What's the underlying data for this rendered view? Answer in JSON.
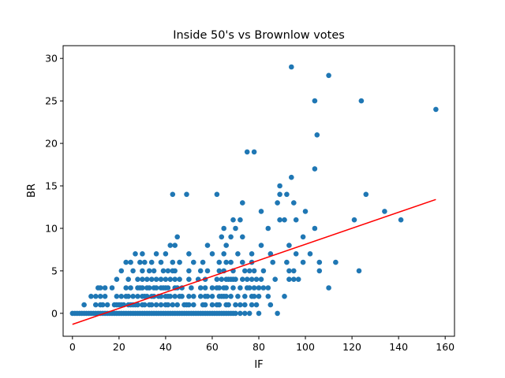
{
  "chart_data": {
    "type": "scatter",
    "title": "Inside 50's vs Brownlow votes",
    "xlabel": "IF",
    "ylabel": "BR",
    "xlim": [
      -4,
      164
    ],
    "ylim": [
      -2.7,
      31.5
    ],
    "xticks": [
      0,
      20,
      40,
      60,
      80,
      100,
      120,
      140,
      160
    ],
    "yticks": [
      0,
      5,
      10,
      15,
      20,
      25,
      30
    ],
    "grid": false,
    "legend": "none",
    "point_color": "#1f77b4",
    "line_color": "#ff0000",
    "regression_line": {
      "x": [
        0,
        156
      ],
      "y": [
        -1.3,
        13.4
      ]
    },
    "points": [
      [
        0,
        0
      ],
      [
        1,
        0
      ],
      [
        2,
        0
      ],
      [
        3,
        0
      ],
      [
        4,
        0
      ],
      [
        5,
        0
      ],
      [
        6,
        0
      ],
      [
        7,
        0
      ],
      [
        8,
        0
      ],
      [
        9,
        0
      ],
      [
        10,
        0
      ],
      [
        11,
        0
      ],
      [
        12,
        0
      ],
      [
        13,
        0
      ],
      [
        14,
        0
      ],
      [
        15,
        0
      ],
      [
        16,
        0
      ],
      [
        17,
        0
      ],
      [
        18,
        0
      ],
      [
        19,
        0
      ],
      [
        20,
        0
      ],
      [
        21,
        0
      ],
      [
        22,
        0
      ],
      [
        23,
        0
      ],
      [
        24,
        0
      ],
      [
        25,
        0
      ],
      [
        26,
        0
      ],
      [
        27,
        0
      ],
      [
        28,
        0
      ],
      [
        29,
        0
      ],
      [
        30,
        0
      ],
      [
        31,
        0
      ],
      [
        32,
        0
      ],
      [
        33,
        0
      ],
      [
        34,
        0
      ],
      [
        35,
        0
      ],
      [
        36,
        0
      ],
      [
        37,
        0
      ],
      [
        38,
        0
      ],
      [
        39,
        0
      ],
      [
        40,
        0
      ],
      [
        41,
        0
      ],
      [
        42,
        0
      ],
      [
        43,
        0
      ],
      [
        44,
        0
      ],
      [
        45,
        0
      ],
      [
        46,
        0
      ],
      [
        47,
        0
      ],
      [
        48,
        0
      ],
      [
        49,
        0
      ],
      [
        50,
        0
      ],
      [
        51,
        0
      ],
      [
        52,
        0
      ],
      [
        53,
        0
      ],
      [
        54,
        0
      ],
      [
        55,
        0
      ],
      [
        56,
        0
      ],
      [
        57,
        0
      ],
      [
        58,
        0
      ],
      [
        59,
        0
      ],
      [
        60,
        0
      ],
      [
        61,
        0
      ],
      [
        62,
        0
      ],
      [
        63,
        0
      ],
      [
        64,
        0
      ],
      [
        65,
        0
      ],
      [
        66,
        0
      ],
      [
        67,
        0
      ],
      [
        68,
        0
      ],
      [
        69,
        0
      ],
      [
        70,
        0
      ],
      [
        72,
        0
      ],
      [
        74,
        0
      ],
      [
        76,
        0
      ],
      [
        80,
        0
      ],
      [
        88,
        0
      ],
      [
        5,
        1
      ],
      [
        10,
        1
      ],
      [
        12,
        1
      ],
      [
        13,
        1
      ],
      [
        15,
        1
      ],
      [
        18,
        1
      ],
      [
        19,
        1
      ],
      [
        20,
        1
      ],
      [
        21,
        1
      ],
      [
        22,
        1
      ],
      [
        24,
        1
      ],
      [
        25,
        1
      ],
      [
        26,
        1
      ],
      [
        27,
        1
      ],
      [
        28,
        1
      ],
      [
        30,
        1
      ],
      [
        31,
        1
      ],
      [
        33,
        1
      ],
      [
        34,
        1
      ],
      [
        36,
        1
      ],
      [
        38,
        1
      ],
      [
        40,
        1
      ],
      [
        41,
        1
      ],
      [
        43,
        1
      ],
      [
        45,
        1
      ],
      [
        48,
        1
      ],
      [
        49,
        1
      ],
      [
        50,
        1
      ],
      [
        52,
        1
      ],
      [
        56,
        1
      ],
      [
        57,
        1
      ],
      [
        60,
        1
      ],
      [
        62,
        1
      ],
      [
        63,
        1
      ],
      [
        66,
        1
      ],
      [
        67,
        1
      ],
      [
        70,
        1
      ],
      [
        72,
        1
      ],
      [
        74,
        1
      ],
      [
        77,
        1
      ],
      [
        79,
        1
      ],
      [
        85,
        1
      ],
      [
        8,
        2
      ],
      [
        10,
        2
      ],
      [
        12,
        2
      ],
      [
        14,
        2
      ],
      [
        19,
        2
      ],
      [
        21,
        2
      ],
      [
        23,
        2
      ],
      [
        24,
        2
      ],
      [
        26,
        2
      ],
      [
        28,
        2
      ],
      [
        30,
        2
      ],
      [
        31,
        2
      ],
      [
        32,
        2
      ],
      [
        34,
        2
      ],
      [
        35,
        2
      ],
      [
        37,
        2
      ],
      [
        38,
        2
      ],
      [
        40,
        2
      ],
      [
        41,
        2
      ],
      [
        42,
        2
      ],
      [
        44,
        2
      ],
      [
        46,
        2
      ],
      [
        47,
        2
      ],
      [
        50,
        2
      ],
      [
        52,
        2
      ],
      [
        55,
        2
      ],
      [
        57,
        2
      ],
      [
        58,
        2
      ],
      [
        60,
        2
      ],
      [
        63,
        2
      ],
      [
        64,
        2
      ],
      [
        65,
        2
      ],
      [
        66,
        2
      ],
      [
        68,
        2
      ],
      [
        71,
        2
      ],
      [
        74,
        2
      ],
      [
        77,
        2
      ],
      [
        78,
        2
      ],
      [
        80,
        2
      ],
      [
        84,
        2
      ],
      [
        91,
        2
      ],
      [
        11,
        3
      ],
      [
        12,
        3
      ],
      [
        14,
        3
      ],
      [
        17,
        3
      ],
      [
        23,
        3
      ],
      [
        25,
        3
      ],
      [
        28,
        3
      ],
      [
        29,
        3
      ],
      [
        30,
        3
      ],
      [
        32,
        3
      ],
      [
        33,
        3
      ],
      [
        35,
        3
      ],
      [
        36,
        3
      ],
      [
        38,
        3
      ],
      [
        39,
        3
      ],
      [
        40,
        3
      ],
      [
        41,
        3
      ],
      [
        44,
        3
      ],
      [
        45,
        3
      ],
      [
        47,
        3
      ],
      [
        51,
        3
      ],
      [
        55,
        3
      ],
      [
        57,
        3
      ],
      [
        60,
        3
      ],
      [
        62,
        3
      ],
      [
        63,
        3
      ],
      [
        65,
        3
      ],
      [
        66,
        3
      ],
      [
        69,
        3
      ],
      [
        72,
        3
      ],
      [
        75,
        3
      ],
      [
        76,
        3
      ],
      [
        78,
        3
      ],
      [
        80,
        3
      ],
      [
        82,
        3
      ],
      [
        84,
        3
      ],
      [
        110,
        3
      ],
      [
        19,
        4
      ],
      [
        24,
        4
      ],
      [
        28,
        4
      ],
      [
        30,
        4
      ],
      [
        32,
        4
      ],
      [
        34,
        4
      ],
      [
        36,
        4
      ],
      [
        38,
        4
      ],
      [
        40,
        4
      ],
      [
        42,
        4
      ],
      [
        44,
        4
      ],
      [
        46,
        4
      ],
      [
        50,
        4
      ],
      [
        54,
        4
      ],
      [
        57,
        4
      ],
      [
        62,
        4
      ],
      [
        64,
        4
      ],
      [
        66,
        4
      ],
      [
        67,
        4
      ],
      [
        68,
        4
      ],
      [
        69,
        4
      ],
      [
        70,
        4
      ],
      [
        73,
        4
      ],
      [
        75,
        4
      ],
      [
        77,
        4
      ],
      [
        79,
        4
      ],
      [
        81,
        4
      ],
      [
        87,
        4
      ],
      [
        93,
        4
      ],
      [
        95,
        4
      ],
      [
        97,
        4
      ],
      [
        21,
        5
      ],
      [
        26,
        5
      ],
      [
        30,
        5
      ],
      [
        33,
        5
      ],
      [
        35,
        5
      ],
      [
        39,
        5
      ],
      [
        41,
        5
      ],
      [
        43,
        5
      ],
      [
        44,
        5
      ],
      [
        50,
        5
      ],
      [
        55,
        5
      ],
      [
        58,
        5
      ],
      [
        63,
        5
      ],
      [
        65,
        5
      ],
      [
        69,
        5
      ],
      [
        74,
        5
      ],
      [
        76,
        5
      ],
      [
        78,
        5
      ],
      [
        82,
        5
      ],
      [
        93,
        5
      ],
      [
        95,
        5
      ],
      [
        106,
        5
      ],
      [
        123,
        5
      ],
      [
        23,
        6
      ],
      [
        25,
        6
      ],
      [
        29,
        6
      ],
      [
        31,
        6
      ],
      [
        34,
        6
      ],
      [
        38,
        6
      ],
      [
        43,
        6
      ],
      [
        46,
        6
      ],
      [
        52,
        6
      ],
      [
        56,
        6
      ],
      [
        63,
        6
      ],
      [
        66,
        6
      ],
      [
        68,
        6
      ],
      [
        73,
        6
      ],
      [
        77,
        6
      ],
      [
        86,
        6
      ],
      [
        92,
        6
      ],
      [
        99,
        6
      ],
      [
        106,
        6
      ],
      [
        113,
        6
      ],
      [
        27,
        7
      ],
      [
        30,
        7
      ],
      [
        36,
        7
      ],
      [
        40,
        7
      ],
      [
        50,
        7
      ],
      [
        60,
        7
      ],
      [
        65,
        7
      ],
      [
        71,
        7
      ],
      [
        77,
        7
      ],
      [
        85,
        7
      ],
      [
        96,
        7
      ],
      [
        102,
        7
      ],
      [
        42,
        8
      ],
      [
        44,
        8
      ],
      [
        58,
        8
      ],
      [
        66,
        8
      ],
      [
        81,
        8
      ],
      [
        93,
        8
      ],
      [
        45,
        9
      ],
      [
        64,
        9
      ],
      [
        68,
        9
      ],
      [
        73,
        9
      ],
      [
        99,
        9
      ],
      [
        65,
        10
      ],
      [
        70,
        10
      ],
      [
        84,
        10
      ],
      [
        104,
        10
      ],
      [
        69,
        11
      ],
      [
        72,
        11
      ],
      [
        89,
        11
      ],
      [
        91,
        11
      ],
      [
        96,
        11
      ],
      [
        121,
        11
      ],
      [
        141,
        11
      ],
      [
        81,
        12
      ],
      [
        100,
        12
      ],
      [
        134,
        12
      ],
      [
        73,
        13
      ],
      [
        88,
        13
      ],
      [
        95,
        13
      ],
      [
        43,
        14
      ],
      [
        49,
        14
      ],
      [
        62,
        14
      ],
      [
        89,
        14
      ],
      [
        92,
        14
      ],
      [
        126,
        14
      ],
      [
        89,
        15
      ],
      [
        94,
        16
      ],
      [
        104,
        17
      ],
      [
        75,
        19
      ],
      [
        78,
        19
      ],
      [
        105,
        21
      ],
      [
        104,
        25
      ],
      [
        124,
        25
      ],
      [
        156,
        24
      ],
      [
        110,
        28
      ],
      [
        94,
        29
      ]
    ]
  }
}
